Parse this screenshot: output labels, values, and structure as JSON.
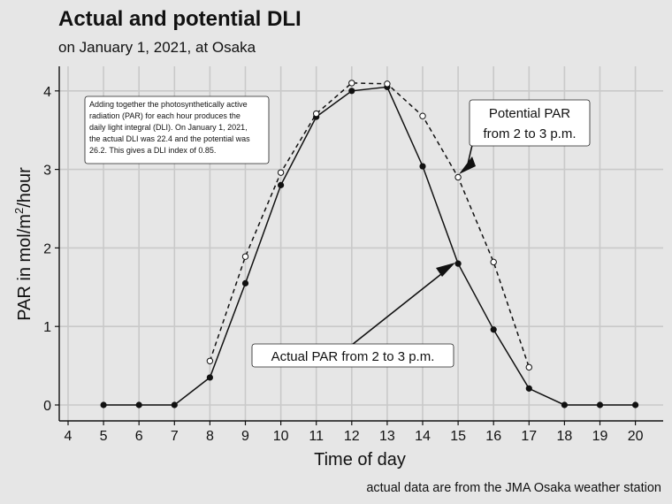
{
  "chart_data": {
    "type": "line",
    "title": "Actual and potential DLI",
    "subtitle": "on January 1, 2021, at Osaka",
    "xlabel": "Time of day",
    "ylabel_main": "PAR in mol/m",
    "ylabel_sup": "2",
    "ylabel_tail": "/hour",
    "caption": "actual data are from the JMA Osaka weather station",
    "xlim": [
      4,
      20
    ],
    "ylim": [
      0,
      4
    ],
    "x_ticks": [
      "4",
      "5",
      "6",
      "7",
      "8",
      "9",
      "10",
      "11",
      "12",
      "13",
      "14",
      "15",
      "16",
      "17",
      "18",
      "19",
      "20"
    ],
    "y_ticks": [
      "0",
      "1",
      "2",
      "3",
      "4"
    ],
    "grid": true,
    "series": [
      {
        "key": "actual",
        "style": "solid, filled points",
        "x": [
          5,
          6,
          7,
          8,
          9,
          10,
          11,
          12,
          13,
          14,
          15,
          16,
          17,
          18,
          19,
          20
        ],
        "y": [
          0,
          0,
          0,
          0.35,
          1.55,
          2.8,
          3.67,
          4.0,
          4.05,
          3.04,
          1.8,
          0.96,
          0.21,
          0,
          0,
          0
        ]
      },
      {
        "key": "potential",
        "style": "dashed, open points",
        "x": [
          8,
          9,
          10,
          11,
          12,
          13,
          14,
          15,
          16,
          17
        ],
        "y": [
          0.56,
          1.89,
          2.96,
          3.71,
          4.1,
          4.09,
          3.68,
          2.9,
          1.82,
          0.48
        ]
      }
    ],
    "note_lines": [
      "Adding together the photosynthetically active",
      "radiation (PAR) for each hour produces the",
      "daily light integral (DLI). On January 1, 2021,",
      "the actual DLI was 22.4 and the potential was",
      "26.2. This gives a DLI index of 0.85."
    ],
    "callout_potential": [
      "Potential PAR",
      "from 2 to 3 p.m."
    ],
    "callout_actual": "Actual PAR from 2 to 3 p.m."
  }
}
